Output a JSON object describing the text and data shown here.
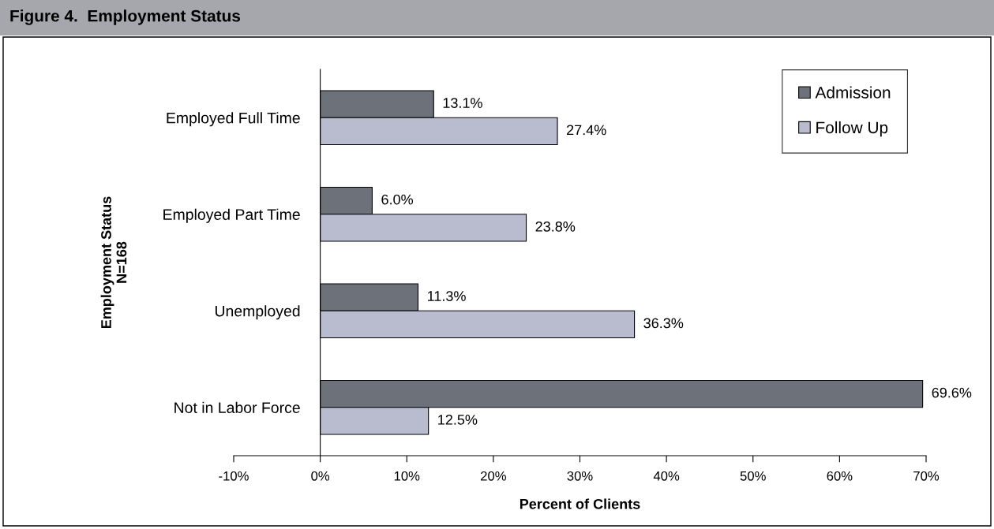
{
  "chart_data": {
    "type": "bar",
    "orientation": "horizontal",
    "title": "Figure 4.  Employment Status",
    "xlabel": "Percent of Clients",
    "ylabel": "Employment Status\nN=168",
    "categories": [
      "Employed Full Time",
      "Employed Part Time",
      "Unemployed",
      "Not in Labor Force"
    ],
    "series": [
      {
        "name": "Admission",
        "color": "#6d7179",
        "values": [
          13.1,
          6.0,
          11.3,
          69.6
        ],
        "value_labels": [
          "13.1%",
          "6.0%",
          "11.3%",
          "69.6%"
        ]
      },
      {
        "name": "Follow Up",
        "color": "#b9bccf",
        "values": [
          27.4,
          23.8,
          36.3,
          12.5
        ],
        "value_labels": [
          "27.4%",
          "23.8%",
          "36.3%",
          "12.5%"
        ]
      }
    ],
    "xlim": [
      -10,
      70
    ],
    "xticks": [
      {
        "value": -10,
        "label": "-10%"
      },
      {
        "value": 0,
        "label": "0%"
      },
      {
        "value": 10,
        "label": "10%"
      },
      {
        "value": 20,
        "label": "20%"
      },
      {
        "value": 30,
        "label": "30%"
      },
      {
        "value": 40,
        "label": "40%"
      },
      {
        "value": 50,
        "label": "50%"
      },
      {
        "value": 60,
        "label": "60%"
      },
      {
        "value": 70,
        "label": "70%"
      }
    ],
    "grid": false,
    "legend": "top right"
  }
}
